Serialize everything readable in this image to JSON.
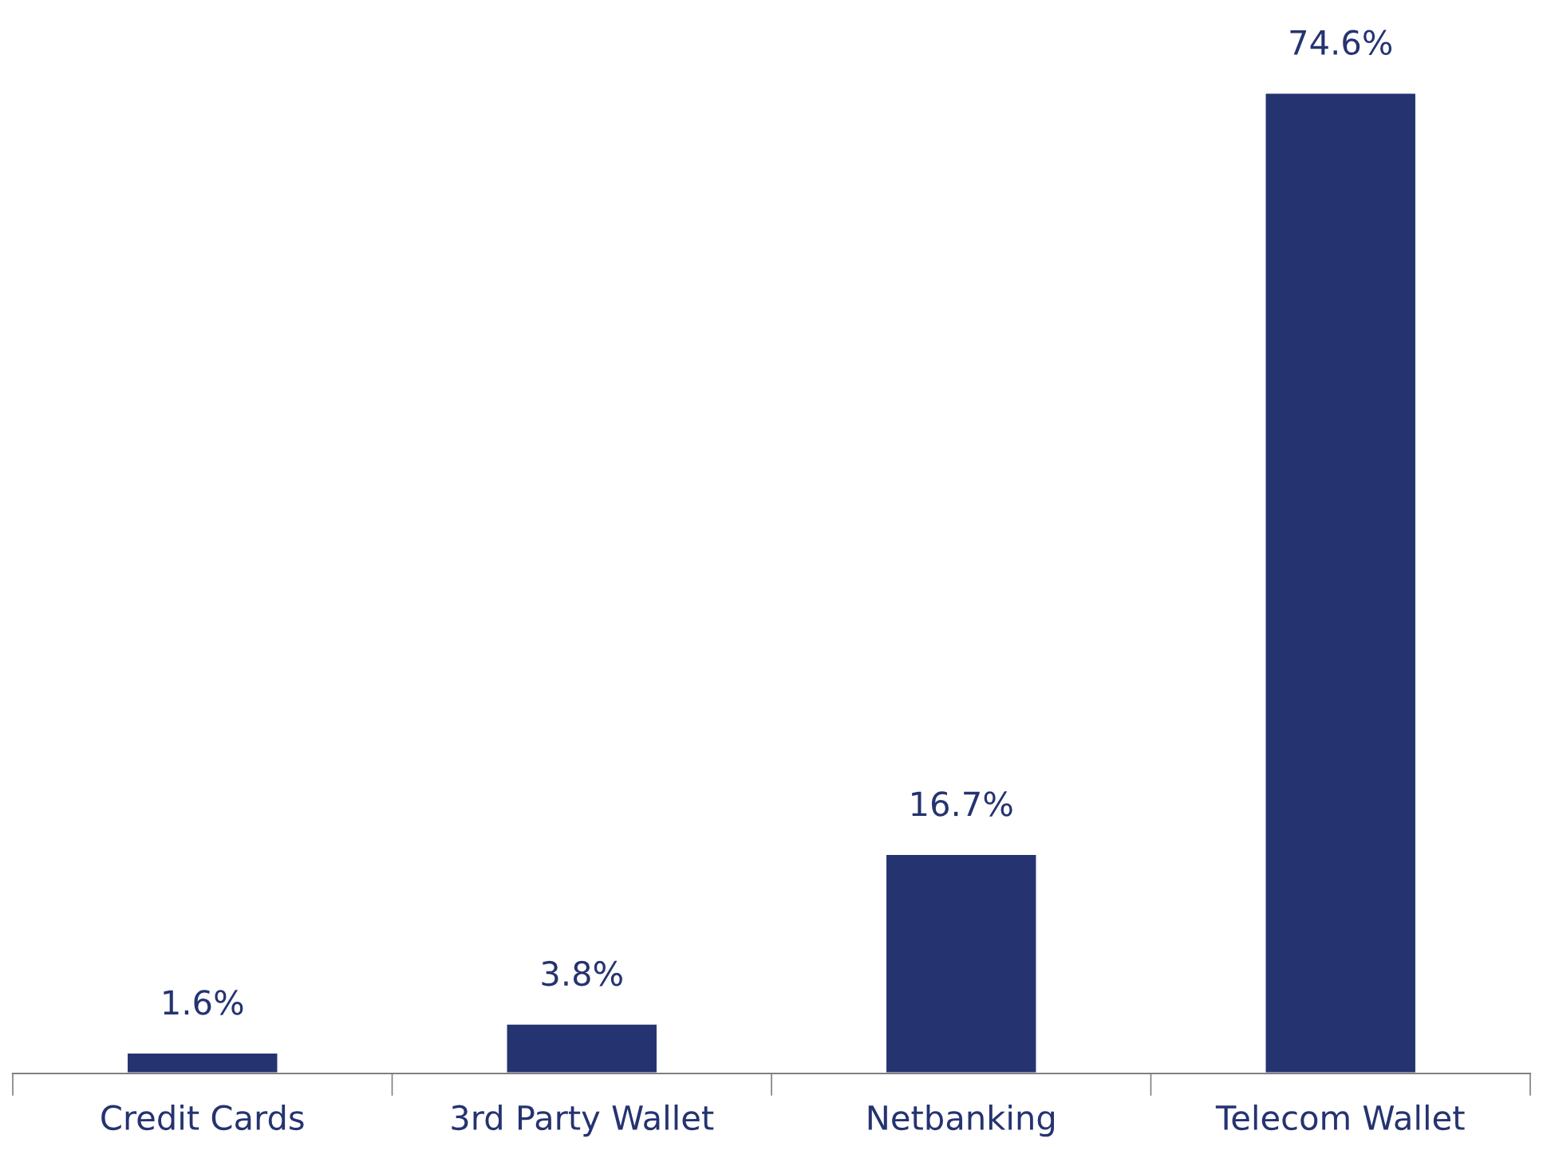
{
  "chart_data": {
    "type": "bar",
    "categories": [
      "Credit Cards",
      "3rd Party Wallet",
      "Netbanking",
      "Telecom Wallet"
    ],
    "values": [
      1.6,
      3.8,
      16.7,
      74.6
    ],
    "value_labels": [
      "1.6%",
      "3.8%",
      "16.7%",
      "74.6%"
    ],
    "color": "#253370",
    "grid": false,
    "legend": false
  }
}
